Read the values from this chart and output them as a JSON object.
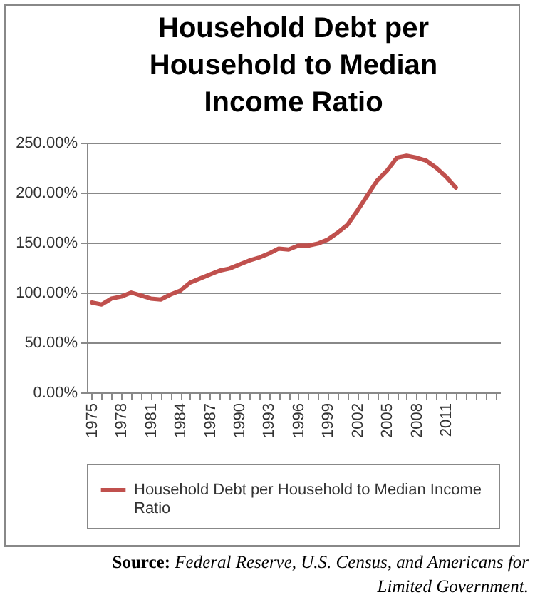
{
  "chart_data": {
    "type": "line",
    "title": "Household Debt  per Household to Median Income Ratio",
    "categories": [
      "1975",
      null,
      null,
      "1978",
      null,
      null,
      "1981",
      null,
      null,
      "1984",
      null,
      null,
      "1987",
      null,
      null,
      "1990",
      null,
      null,
      "1993",
      null,
      null,
      "1996",
      null,
      null,
      "1999",
      null,
      null,
      "2002",
      null,
      null,
      "2005",
      null,
      null,
      "2008",
      null,
      null,
      "2011",
      null,
      null,
      null,
      null,
      null
    ],
    "series": [
      {
        "name": "Household Debt  per Household to Median Income Ratio",
        "color": "#c0504d",
        "values": [
          90,
          88,
          94,
          96,
          100,
          97,
          94,
          93,
          98,
          102,
          110,
          114,
          118,
          122,
          124,
          128,
          132,
          135,
          139,
          144,
          143,
          147,
          147,
          149,
          153,
          160,
          168,
          182,
          197,
          212,
          222,
          235,
          237,
          235,
          232,
          225,
          216,
          205,
          null,
          null,
          null,
          null
        ]
      }
    ],
    "ylim": [
      0,
      250
    ],
    "yticks": [
      {
        "value": 0,
        "label": "0.00%"
      },
      {
        "value": 50,
        "label": "50.00%"
      },
      {
        "value": 100,
        "label": "100.00%"
      },
      {
        "value": 150,
        "label": "150.00%"
      },
      {
        "value": 200,
        "label": "200.00%"
      },
      {
        "value": 250,
        "label": "250.00%"
      }
    ],
    "grid": "y",
    "legend": "bottom",
    "line_style": "solid",
    "annotations": [
      "Source: Federal Reserve, U.S. Census, and Americans for Limited Government."
    ]
  }
}
